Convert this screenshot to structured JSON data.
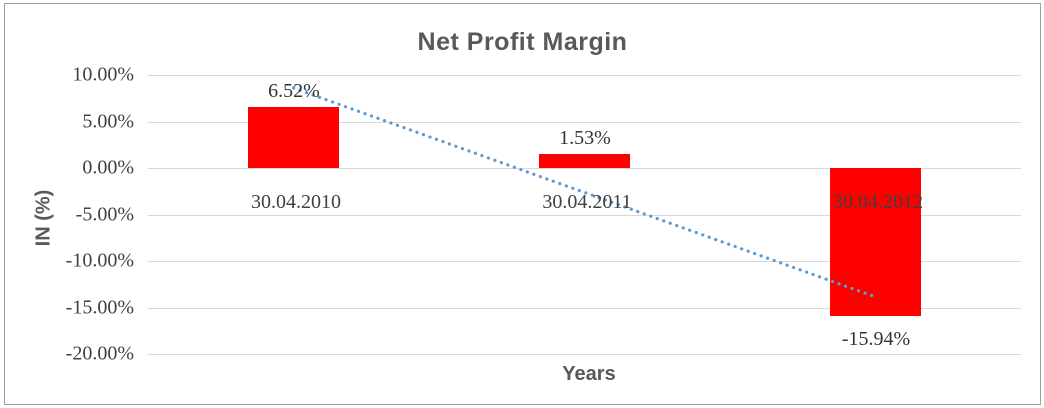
{
  "window": {
    "background": "#ffffff",
    "border_color": "#9e9e9e"
  },
  "chart_data": {
    "type": "bar",
    "title": "Net Profit Margin",
    "xlabel": "Years",
    "ylabel": "IN (%)",
    "categories": [
      "30.04.2010",
      "30.04.2011",
      "30.04.2012"
    ],
    "values": [
      6.52,
      1.53,
      -15.94
    ],
    "data_labels": [
      "6.52%",
      "1.53%",
      "-15.94%"
    ],
    "yticks": [
      10,
      5,
      0,
      -5,
      -10,
      -15,
      -20
    ],
    "ytick_labels": [
      "10.00%",
      "5.00%",
      "0.00%",
      "-5.00%",
      "-10.00%",
      "-15.00%",
      "-20.00%"
    ],
    "ylim": [
      -20,
      10
    ],
    "grid": true,
    "legend": false,
    "bar_color": "#ff0000",
    "label_color": "#404040",
    "title_color": "#595959",
    "gridline_color": "#d9d9d9",
    "trendline": {
      "type": "linear",
      "style": "dotted",
      "color": "#5b9bd5"
    }
  }
}
